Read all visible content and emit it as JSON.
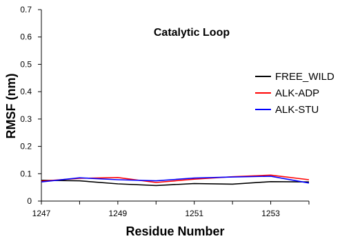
{
  "chart_data": {
    "type": "line",
    "title": "Catalytic Loop",
    "xlabel": "Residue Number",
    "ylabel": "RMSF (nm)",
    "xlim": [
      1247,
      1254
    ],
    "ylim": [
      0,
      0.7
    ],
    "x_ticks": [
      1247,
      1249,
      1251,
      1253
    ],
    "y_ticks": [
      0,
      0.1,
      0.2,
      0.3,
      0.4,
      0.5,
      0.6,
      0.7
    ],
    "x_tick_labels": [
      "1247",
      "1249",
      "1251",
      "1253"
    ],
    "y_tick_labels": [
      "0",
      "0.1",
      "0.2",
      "0.3",
      "0.4",
      "0.5",
      "0.6",
      "0.7"
    ],
    "grid": false,
    "legend_position": "right",
    "x": [
      1247,
      1248,
      1249,
      1250,
      1251,
      1252,
      1253,
      1254
    ],
    "series": [
      {
        "name": "FREE_WILD",
        "color": "#000000",
        "values": [
          0.076,
          0.074,
          0.063,
          0.057,
          0.064,
          0.062,
          0.071,
          0.07
        ]
      },
      {
        "name": "ALK-ADP",
        "color": "#ff0000",
        "values": [
          0.073,
          0.083,
          0.086,
          0.068,
          0.08,
          0.089,
          0.095,
          0.078
        ]
      },
      {
        "name": "ALK-STU",
        "color": "#0000ff",
        "values": [
          0.07,
          0.085,
          0.078,
          0.074,
          0.084,
          0.088,
          0.091,
          0.066
        ]
      }
    ]
  }
}
